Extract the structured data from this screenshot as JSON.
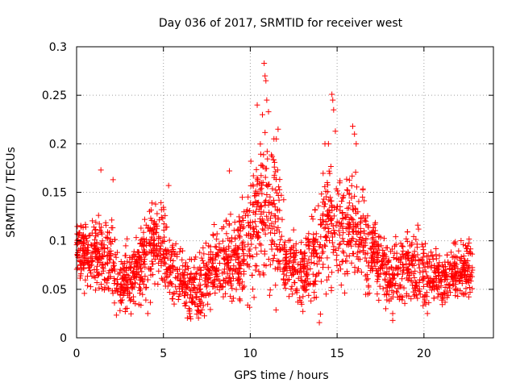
{
  "chart_data": {
    "type": "scatter",
    "title": "Day 036 of 2017, SRMTID for receiver west",
    "xlabel": "GPS time / hours",
    "ylabel": "SRMTID / TECUs",
    "xlim": [
      0,
      24
    ],
    "ylim": [
      0,
      0.3
    ],
    "xticks": [
      0,
      5,
      10,
      15,
      20
    ],
    "yticks": [
      0,
      0.05,
      0.1,
      0.15,
      0.2,
      0.25,
      0.3
    ],
    "xtick_labels": [
      "0",
      "5",
      "10",
      "15",
      "20"
    ],
    "ytick_labels": [
      "0",
      "0.05",
      "0.1",
      "0.15",
      "0.2",
      "0.25",
      "0.3"
    ],
    "grid": true,
    "marker": "+",
    "color": "#ff0000",
    "x_data_range": [
      0,
      22.8
    ],
    "profile": {
      "hours": [
        0,
        1,
        1.5,
        2,
        2.5,
        3,
        3.5,
        4,
        4.5,
        5,
        5.5,
        6,
        6.5,
        7,
        7.5,
        8,
        8.5,
        9,
        9.5,
        10,
        10.5,
        11,
        11.5,
        12,
        12.5,
        13,
        13.5,
        14,
        14.5,
        15,
        15.5,
        16,
        16.5,
        17,
        17.5,
        18,
        18.5,
        19,
        19.5,
        20,
        20.5,
        21,
        21.5,
        22,
        22.8
      ],
      "typical": [
        0.09,
        0.085,
        0.09,
        0.08,
        0.06,
        0.055,
        0.07,
        0.085,
        0.1,
        0.095,
        0.075,
        0.06,
        0.05,
        0.055,
        0.065,
        0.075,
        0.08,
        0.085,
        0.085,
        0.105,
        0.125,
        0.13,
        0.12,
        0.08,
        0.07,
        0.065,
        0.08,
        0.1,
        0.115,
        0.12,
        0.11,
        0.115,
        0.1,
        0.09,
        0.08,
        0.065,
        0.065,
        0.07,
        0.07,
        0.065,
        0.065,
        0.06,
        0.065,
        0.07,
        0.07
      ],
      "spread": [
        0.02,
        0.025,
        0.03,
        0.03,
        0.025,
        0.025,
        0.025,
        0.03,
        0.03,
        0.03,
        0.025,
        0.02,
        0.02,
        0.025,
        0.025,
        0.025,
        0.025,
        0.03,
        0.03,
        0.045,
        0.055,
        0.055,
        0.05,
        0.03,
        0.025,
        0.025,
        0.03,
        0.04,
        0.045,
        0.04,
        0.04,
        0.04,
        0.035,
        0.03,
        0.025,
        0.02,
        0.025,
        0.025,
        0.025,
        0.025,
        0.02,
        0.02,
        0.02,
        0.02,
        0.02
      ]
    },
    "notable_points": [
      {
        "x": 10.8,
        "y": 0.283
      },
      {
        "x": 10.85,
        "y": 0.27
      },
      {
        "x": 10.9,
        "y": 0.265
      },
      {
        "x": 10.95,
        "y": 0.245
      },
      {
        "x": 11.05,
        "y": 0.233
      },
      {
        "x": 10.7,
        "y": 0.23
      },
      {
        "x": 10.4,
        "y": 0.24
      },
      {
        "x": 14.7,
        "y": 0.251
      },
      {
        "x": 14.75,
        "y": 0.245
      },
      {
        "x": 14.8,
        "y": 0.235
      },
      {
        "x": 14.9,
        "y": 0.213
      },
      {
        "x": 15.9,
        "y": 0.218
      },
      {
        "x": 16.0,
        "y": 0.21
      },
      {
        "x": 16.1,
        "y": 0.2
      },
      {
        "x": 1.4,
        "y": 0.173
      },
      {
        "x": 2.1,
        "y": 0.163
      },
      {
        "x": 8.8,
        "y": 0.172
      },
      {
        "x": 5.3,
        "y": 0.157
      },
      {
        "x": 11.6,
        "y": 0.215
      },
      {
        "x": 11.5,
        "y": 0.205
      },
      {
        "x": 14.3,
        "y": 0.2
      },
      {
        "x": 14.5,
        "y": 0.2
      },
      {
        "x": 17.8,
        "y": 0.03
      },
      {
        "x": 18.2,
        "y": 0.018
      },
      {
        "x": 18.2,
        "y": 0.025
      },
      {
        "x": 4.1,
        "y": 0.025
      },
      {
        "x": 6.5,
        "y": 0.025
      },
      {
        "x": 2.5,
        "y": 0.028
      },
      {
        "x": 20.2,
        "y": 0.025
      }
    ]
  }
}
